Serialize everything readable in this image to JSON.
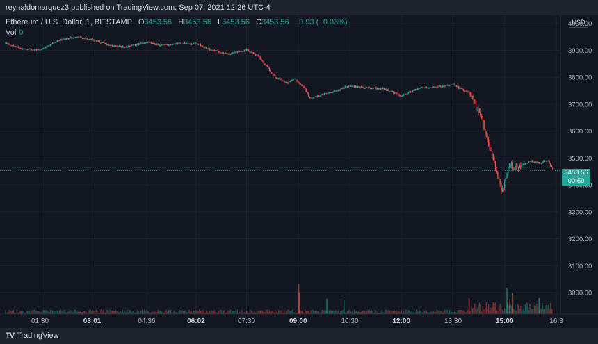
{
  "header": {
    "published_note": "reynaldomarquez3 published on TradingView.com, Sep 07, 2021 12:26 UTC-4"
  },
  "legend": {
    "symbol": "Ethereum / U.S. Dollar, 1, BITSTAMP",
    "open_label": "O",
    "open": "3453.56",
    "high_label": "H",
    "high": "3453.56",
    "low_label": "L",
    "low": "3453.56",
    "close_label": "C",
    "close": "3453.56",
    "change": "−0.93 (−0.03%)",
    "volume_label": "Vol",
    "volume": "0"
  },
  "price_axis": {
    "currency": "USD"
  },
  "last_price": {
    "value": "3453.56",
    "countdown": "00:59"
  },
  "footer": {
    "logo_text": "TradingView",
    "logo_icon": "tradingview-logo-icon"
  },
  "colors": {
    "background": "#131722",
    "up": "#26a69a",
    "down": "#ef5350",
    "grid": "#1e222d",
    "text": "#b2b5be"
  },
  "chart_data": {
    "type": "line",
    "title": "",
    "xlabel": "",
    "ylabel": "",
    "ylim": [
      2920,
      4030
    ],
    "yticks": [
      3000,
      3100,
      3200,
      3300,
      3400,
      3500,
      3600,
      3700,
      3800,
      3900,
      4000
    ],
    "ytick_labels": [
      "3000.00",
      "3100.00",
      "3200.00",
      "3300.00",
      "3400.00",
      "3500.00",
      "3600.00",
      "3700.00",
      "3800.00",
      "3900.00",
      "4000.00"
    ],
    "x_range_minutes": [
      30,
      990
    ],
    "xticks": [
      {
        "label": "01:30",
        "minutes": 90,
        "bold": false
      },
      {
        "label": "03:01",
        "minutes": 181,
        "bold": true
      },
      {
        "label": "04:36",
        "minutes": 276,
        "bold": false
      },
      {
        "label": "06:02",
        "minutes": 362,
        "bold": true
      },
      {
        "label": "07:30",
        "minutes": 450,
        "bold": false
      },
      {
        "label": "09:00",
        "minutes": 540,
        "bold": true
      },
      {
        "label": "10:30",
        "minutes": 630,
        "bold": false
      },
      {
        "label": "12:00",
        "minutes": 720,
        "bold": true
      },
      {
        "label": "13:30",
        "minutes": 810,
        "bold": false
      },
      {
        "label": "15:00",
        "minutes": 900,
        "bold": true
      },
      {
        "label": "16:3",
        "minutes": 990,
        "bold": false
      }
    ],
    "series": [
      {
        "x": [
          30,
          60,
          90,
          120,
          150,
          181,
          210,
          240,
          276,
          300,
          330,
          362,
          390,
          420,
          450,
          470,
          500,
          520,
          535,
          540,
          550,
          560,
          600,
          630,
          660,
          690,
          720,
          750,
          780,
          810,
          840,
          860,
          870,
          880,
          890,
          895,
          900,
          905,
          910,
          915,
          925,
          945,
          960,
          975,
          985
        ],
        "values": [
          3925,
          3905,
          3902,
          3935,
          3950,
          3940,
          3918,
          3912,
          3930,
          3918,
          3925,
          3925,
          3900,
          3885,
          3902,
          3878,
          3802,
          3778,
          3795,
          3778,
          3762,
          3722,
          3745,
          3768,
          3760,
          3758,
          3730,
          3760,
          3765,
          3772,
          3738,
          3650,
          3560,
          3495,
          3410,
          3370,
          3410,
          3450,
          3480,
          3465,
          3470,
          3488,
          3482,
          3490,
          3455
        ]
      }
    ],
    "last_price": 3453.56,
    "volume": {
      "ylim": [
        0,
        900
      ],
      "spikes": [
        {
          "minutes": 541,
          "value": 220,
          "up": false
        },
        {
          "minutes": 542,
          "value": 155,
          "up": false
        },
        {
          "minutes": 590,
          "value": 110,
          "up": true
        },
        {
          "minutes": 620,
          "value": 105,
          "up": true
        },
        {
          "minutes": 838,
          "value": 115,
          "up": false
        },
        {
          "minutes": 904,
          "value": 190,
          "up": true
        },
        {
          "minutes": 909,
          "value": 110,
          "up": false
        },
        {
          "minutes": 914,
          "value": 150,
          "up": false
        },
        {
          "minutes": 960,
          "value": 115,
          "up": true
        }
      ]
    }
  }
}
